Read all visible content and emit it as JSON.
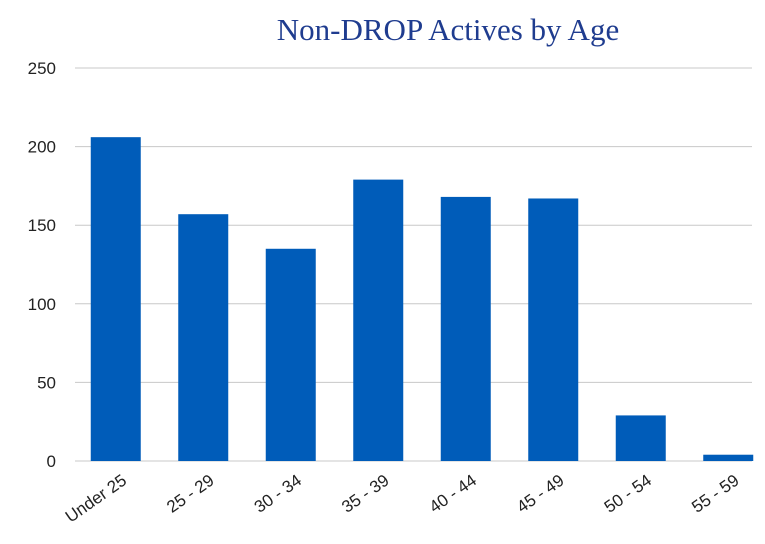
{
  "chart_data": {
    "type": "bar",
    "title": "Non-DROP Actives by Age",
    "categories": [
      "Under 25",
      "25 - 29",
      "30 - 34",
      "35 - 39",
      "40 - 44",
      "45 - 49",
      "50 - 54",
      "55 - 59"
    ],
    "values": [
      206,
      157,
      135,
      179,
      168,
      167,
      29,
      4
    ],
    "color": "#005cb9",
    "ylim": [
      0,
      250
    ],
    "yticks": [
      0,
      50,
      100,
      150,
      200,
      250
    ],
    "grid": true
  }
}
